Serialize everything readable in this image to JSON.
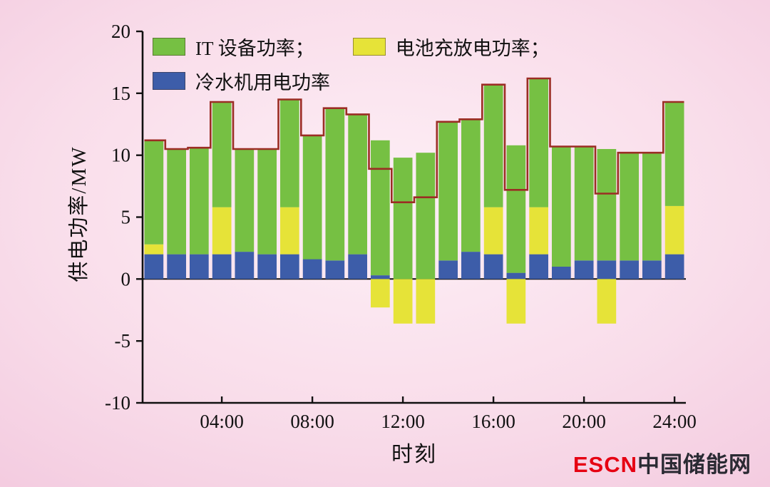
{
  "axes": {
    "ylabel": "供电功率/MW",
    "xlabel": "时刻"
  },
  "legend": {
    "items": [
      {
        "label": "IT 设备功率；",
        "color": "#76c043"
      },
      {
        "label": "电池充放电功率；",
        "color": "#e6e338"
      },
      {
        "label": "冷水机用电功率",
        "color": "#3d5da9"
      }
    ]
  },
  "logo": {
    "brand": "ESCN",
    "name": "中国储能网",
    "brand_color": "#e60012",
    "name_color": "#2a2a33"
  },
  "chart_data": {
    "type": "bar",
    "stacked": true,
    "title": "",
    "xlabel": "时刻",
    "ylabel": "供电功率/MW",
    "ylim": [
      -10,
      20
    ],
    "yticks": [
      20,
      15,
      10,
      5,
      0,
      -5,
      -10
    ],
    "xtick_labels": [
      "04:00",
      "08:00",
      "12:00",
      "16:00",
      "20:00",
      "24:00"
    ],
    "xtick_hours": [
      4,
      8,
      12,
      16,
      20,
      24
    ],
    "hours": [
      1,
      2,
      3,
      4,
      5,
      6,
      7,
      8,
      9,
      10,
      11,
      12,
      13,
      14,
      15,
      16,
      17,
      18,
      19,
      20,
      21,
      22,
      23,
      24
    ],
    "series": [
      {
        "name": "冷水机用电功率",
        "key": "chiller",
        "color": "#3d5da9",
        "values": [
          2.0,
          2.0,
          2.0,
          2.0,
          2.2,
          2.0,
          2.0,
          1.6,
          1.5,
          2.0,
          0.3,
          0,
          0,
          1.5,
          2.2,
          2.0,
          0.5,
          2.0,
          1.0,
          1.5,
          1.5,
          1.5,
          1.5,
          2.0
        ]
      },
      {
        "name": "电池充放电功率",
        "key": "battery",
        "color": "#e6e338",
        "values": [
          0.8,
          0,
          0,
          3.8,
          0,
          0,
          3.8,
          0,
          0,
          0,
          -2.3,
          -3.6,
          -3.6,
          0,
          0,
          3.8,
          -3.6,
          3.8,
          0,
          0,
          -3.6,
          0,
          0,
          3.9
        ]
      },
      {
        "name": "IT 设备功率",
        "key": "it",
        "color": "#76c043",
        "values": [
          8.4,
          8.5,
          8.6,
          8.5,
          8.3,
          8.5,
          8.7,
          10.0,
          12.3,
          11.3,
          10.9,
          9.8,
          10.2,
          11.2,
          10.7,
          9.9,
          10.3,
          10.4,
          9.7,
          9.2,
          9.0,
          8.7,
          8.7,
          8.4
        ]
      }
    ],
    "envelope": {
      "color": "#9b2d24",
      "values": [
        11.2,
        10.5,
        10.6,
        14.3,
        10.5,
        10.5,
        14.5,
        11.6,
        13.8,
        13.3,
        8.9,
        6.2,
        6.6,
        12.7,
        12.9,
        15.7,
        7.2,
        16.2,
        10.7,
        10.7,
        6.9,
        10.2,
        10.2,
        14.3
      ]
    },
    "legend_position": "upper-left",
    "grid": false
  }
}
